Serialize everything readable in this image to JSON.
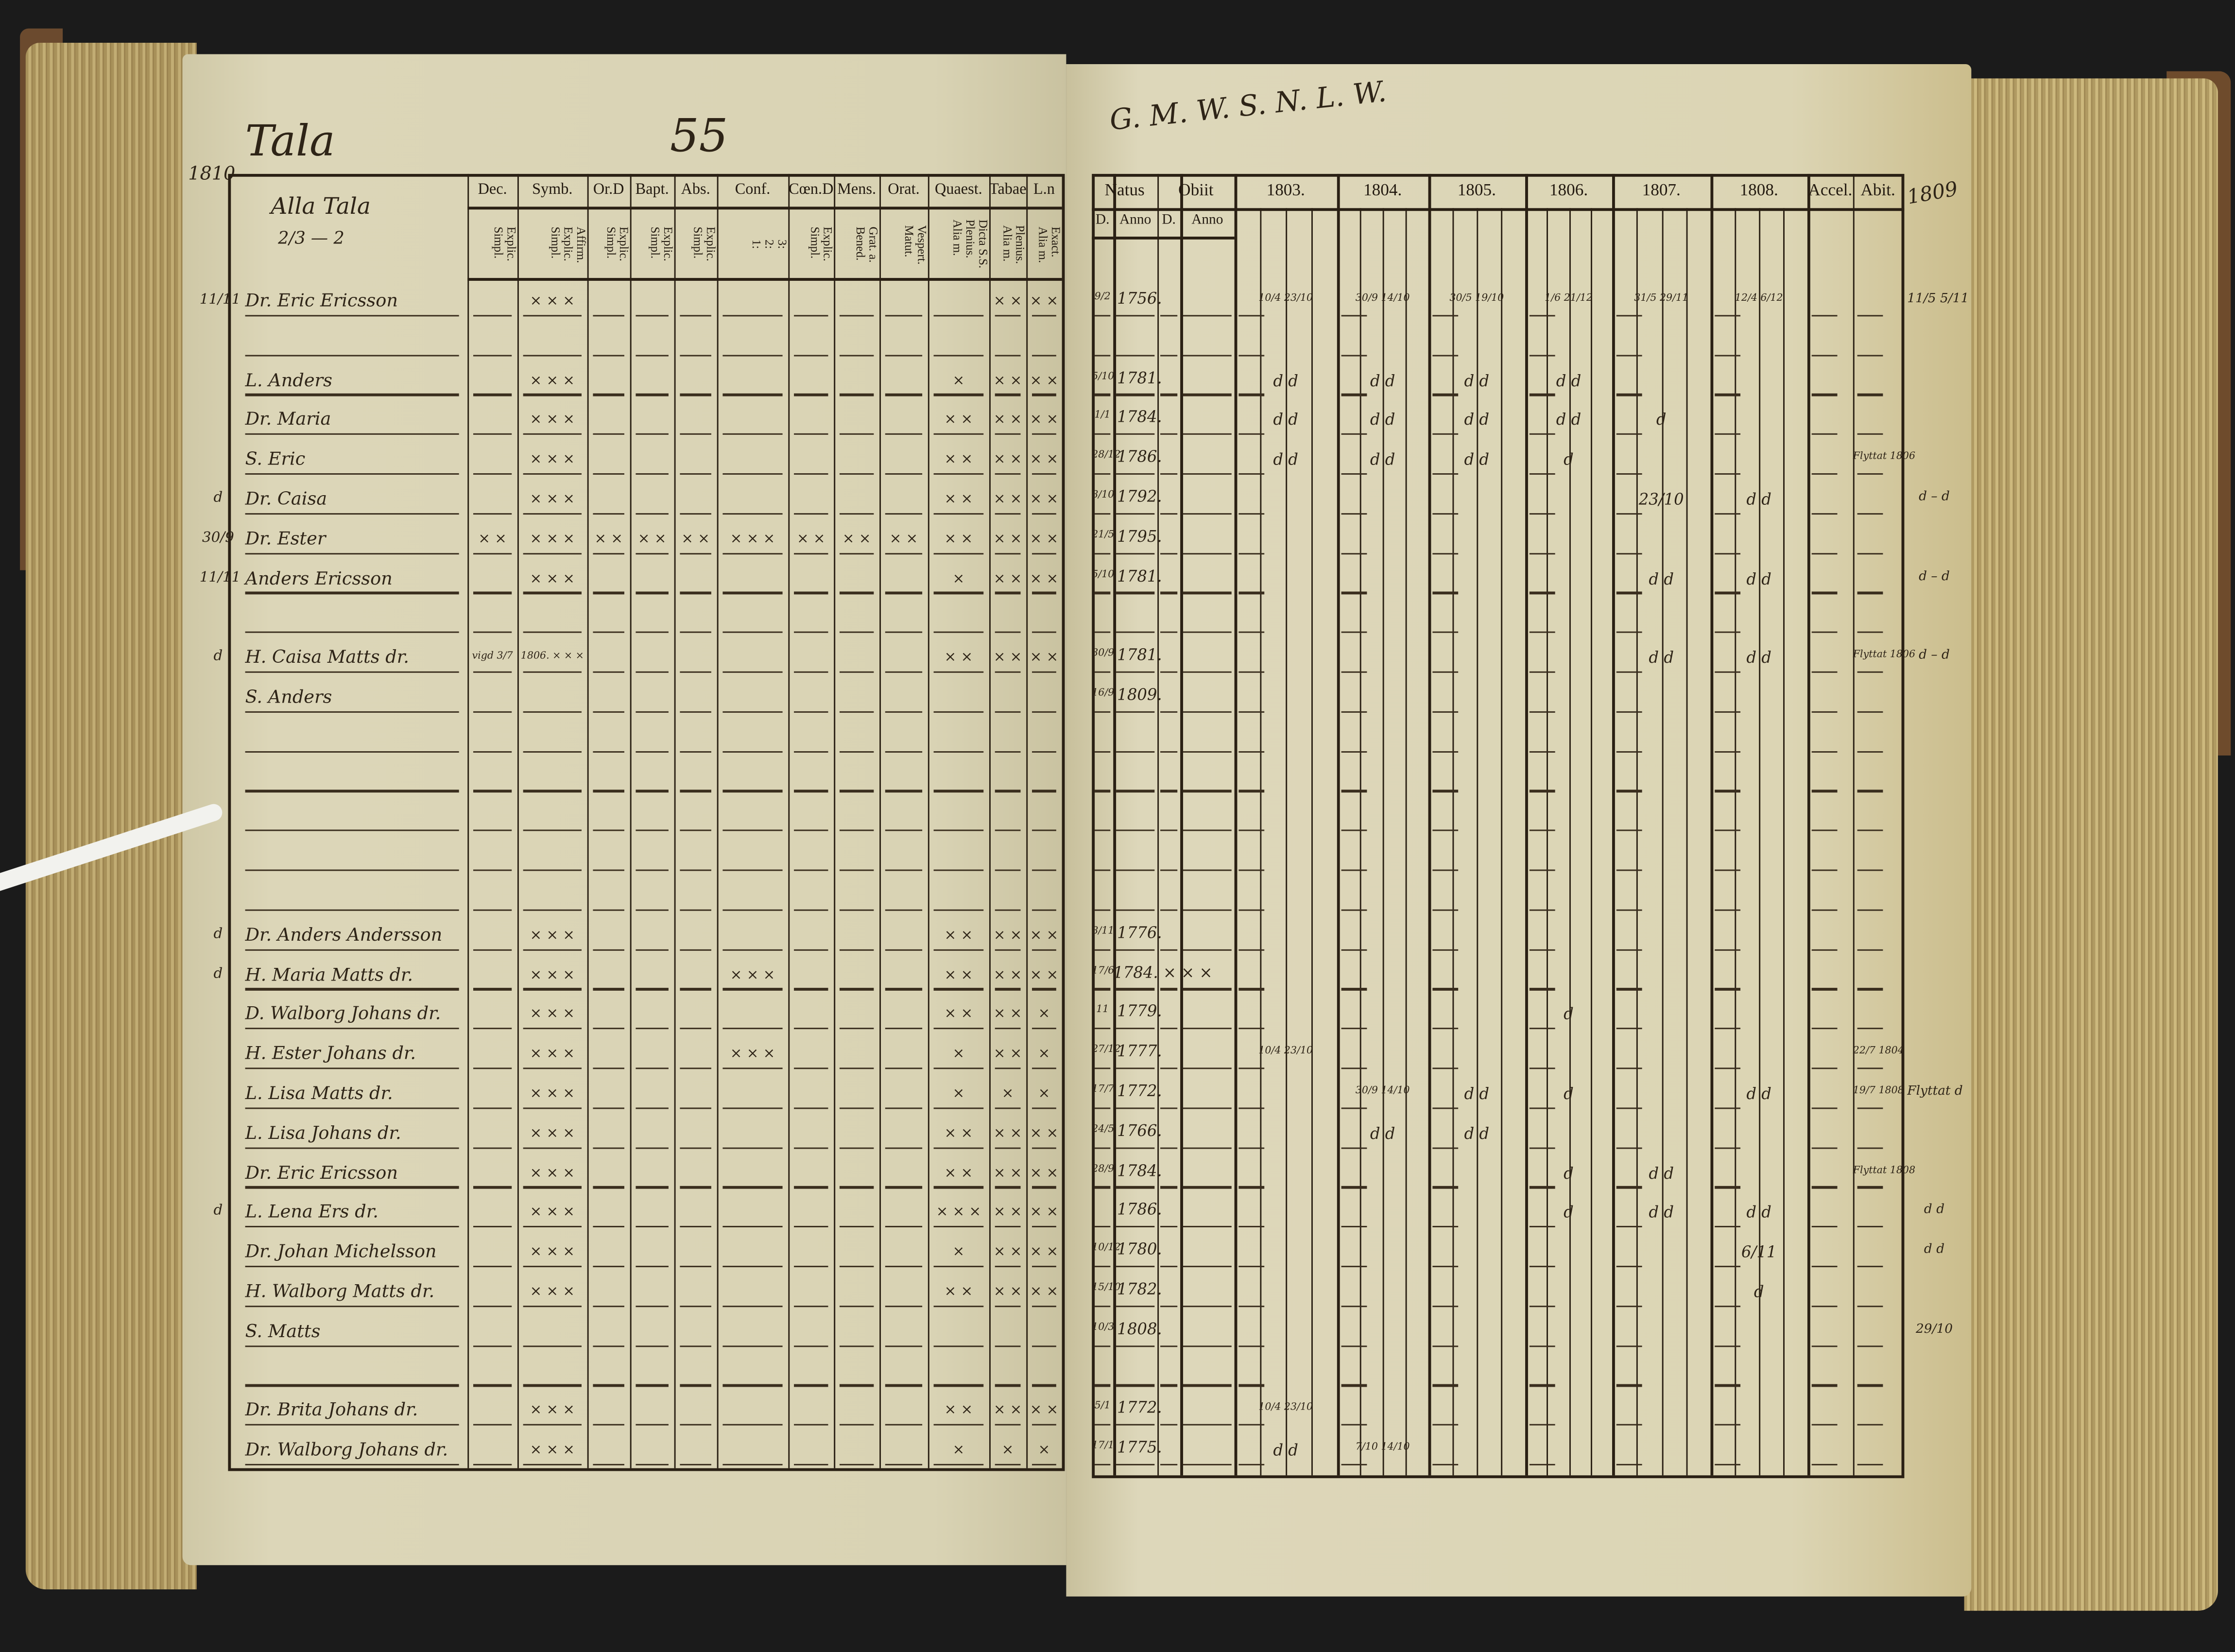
{
  "left_page": {
    "title": "Tala",
    "page_number": "55",
    "year_margin": "1810",
    "name_header": "Alla Tala",
    "name_header_fraction": "2/3 — 2",
    "columns": [
      {
        "top": "Dec.",
        "sub": [
          "Explic.",
          "Simpl."
        ]
      },
      {
        "top": "Symb.",
        "sub": [
          "Affirm.",
          "Explic.",
          "Simpl."
        ]
      },
      {
        "top": "Or.D",
        "sub": [
          "Explic.",
          "Simpl."
        ]
      },
      {
        "top": "Bapt.",
        "sub": [
          "Explic.",
          "Simpl."
        ]
      },
      {
        "top": "Abs.",
        "sub": [
          "Explic.",
          "Simpl."
        ]
      },
      {
        "top": "Conf.",
        "sub": [
          "3:",
          "2:",
          "1:"
        ]
      },
      {
        "top": "Cœn.D",
        "sub": [
          "Explic.",
          "Simpl."
        ]
      },
      {
        "top": "Mens.",
        "sub": [
          "Grat. a.",
          "Bened."
        ]
      },
      {
        "top": "Orat.",
        "sub": [
          "Vespert.",
          "Matut."
        ]
      },
      {
        "top": "Quaest.",
        "sub": [
          "Dicta S.S.",
          "Plenius.",
          "Alia m."
        ]
      },
      {
        "top": "Tabae",
        "sub": [
          "Plenius.",
          "Alia m."
        ]
      },
      {
        "top": "L.n",
        "sub": [
          "Exact.",
          "Alia m."
        ]
      }
    ],
    "rows": [
      {
        "row": 0,
        "name": "Dr. Eric Ericsson",
        "margin": "11/11",
        "marks": {
          "1": "× × ×",
          "10": "× ×",
          "11": "× ×"
        }
      },
      {
        "row": 2,
        "name": "L. Anders",
        "marks": {
          "1": "× × ×",
          "9": "×",
          "10": "× ×",
          "11": "× ×"
        }
      },
      {
        "row": 3,
        "name": "Dr. Maria",
        "marks": {
          "1": "× × ×",
          "9": "× ×",
          "10": "× ×",
          "11": "× ×"
        }
      },
      {
        "row": 4,
        "name": "S. Eric",
        "marks": {
          "1": "× × ×",
          "9": "× ×",
          "10": "× ×",
          "11": "× ×"
        }
      },
      {
        "row": 5,
        "name": "Dr. Caisa",
        "margin": "d",
        "marks": {
          "1": "× × ×",
          "9": "× ×",
          "10": "× ×",
          "11": "× ×"
        }
      },
      {
        "row": 6,
        "name": "Dr. Ester",
        "margin": "30/9",
        "marks": {
          "0": "× ×",
          "1": "× × ×",
          "2": "× ×",
          "3": "× ×",
          "4": "× ×",
          "5": "× × ×",
          "6": "× ×",
          "7": "× ×",
          "8": "× ×",
          "9": "× ×",
          "10": "× ×",
          "11": "× ×"
        }
      },
      {
        "row": 7,
        "name": "Anders Ericsson",
        "margin": "11/11",
        "marks": {
          "1": "× × ×",
          "9": "×",
          "10": "× ×",
          "11": "× ×"
        }
      },
      {
        "row": 9,
        "name": "H. Caisa Matts dr.",
        "margin": "d",
        "marks": {
          "0": "vigd 3/7",
          "1": "1806. × × ×",
          "9": "× ×",
          "10": "× ×",
          "11": "× ×"
        }
      },
      {
        "row": 10,
        "name": "S. Anders",
        "marks": {}
      },
      {
        "row": 16,
        "name": "Dr. Anders Andersson",
        "margin": "d",
        "marks": {
          "1": "× × ×",
          "9": "× ×",
          "10": "× ×",
          "11": "× ×"
        }
      },
      {
        "row": 17,
        "name": "H. Maria Matts dr.",
        "margin": "d",
        "marks": {
          "1": "× × ×",
          "5": "× × ×",
          "9": "× ×",
          "10": "× ×",
          "11": "× ×"
        }
      },
      {
        "row": 18,
        "name": "D. Walborg Johans dr.",
        "marks": {
          "1": "× × ×",
          "9": "× ×",
          "10": "× ×",
          "11": "×"
        }
      },
      {
        "row": 19,
        "name": "H. Ester Johans dr.",
        "marks": {
          "1": "× × ×",
          "5": "× × ×",
          "9": "×",
          "10": "× ×",
          "11": "×"
        }
      },
      {
        "row": 20,
        "name": "L. Lisa Matts dr.",
        "marks": {
          "1": "× × ×",
          "9": "×",
          "10": "×",
          "11": "×"
        }
      },
      {
        "row": 21,
        "name": "L. Lisa Johans dr.",
        "marks": {
          "1": "× × ×",
          "9": "× ×",
          "10": "× ×",
          "11": "× ×"
        }
      },
      {
        "row": 22,
        "name": "Dr. Eric Ericsson",
        "marks": {
          "1": "× × ×",
          "9": "× ×",
          "10": "× ×",
          "11": "× ×"
        }
      },
      {
        "row": 23,
        "name": "L. Lena Ers dr.",
        "margin": "d",
        "marks": {
          "1": "× × ×",
          "9": "× × ×",
          "10": "× ×",
          "11": "× ×"
        }
      },
      {
        "row": 24,
        "name": "Dr. Johan Michelsson",
        "marks": {
          "1": "× × ×",
          "9": "×",
          "10": "× ×",
          "11": "× ×"
        }
      },
      {
        "row": 25,
        "name": "H. Walborg Matts dr.",
        "marks": {
          "1": "× × ×",
          "9": "× ×",
          "10": "× ×",
          "11": "× ×"
        }
      },
      {
        "row": 26,
        "name": "S. Matts",
        "marks": {}
      },
      {
        "row": 28,
        "name": "Dr. Brita Johans dr.",
        "marks": {
          "1": "× × ×",
          "9": "× ×",
          "10": "× ×",
          "11": "× ×"
        }
      },
      {
        "row": 29,
        "name": "Dr. Walborg Johans dr.",
        "marks": {
          "1": "× × ×",
          "9": "×",
          "10": "×",
          "11": "×"
        }
      }
    ]
  },
  "right_page": {
    "top_note": "G. M. W. S. N. L. W.",
    "year_margin": "1809",
    "columns": [
      {
        "top": "Natus",
        "sub": [
          "D.",
          "Anno"
        ]
      },
      {
        "top": "Obiit",
        "sub": [
          "D.",
          "Anno"
        ]
      },
      {
        "top": "1803."
      },
      {
        "top": "1804."
      },
      {
        "top": "1805."
      },
      {
        "top": "1806."
      },
      {
        "top": "1807."
      },
      {
        "top": "1808."
      },
      {
        "top": "Accel."
      },
      {
        "top": "Abit."
      }
    ],
    "rows": [
      {
        "row": 0,
        "d": "9/2",
        "anno": "1756.",
        "marks": {
          "1803": "10/4 23/10",
          "1804": "30/9 14/10",
          "1805": "30/5 19/10",
          "1806": "1/6 21/12",
          "1807": "31/5 29/11",
          "1808": "12/4 6/12"
        },
        "margin": "11/5 5/11"
      },
      {
        "row": 2,
        "d": "5/10",
        "anno": "1781.",
        "marks": {
          "1803": "d d",
          "1804": "d d",
          "1805": "d d",
          "1806": "d d"
        }
      },
      {
        "row": 3,
        "d": "1/1",
        "anno": "1784.",
        "marks": {
          "1803": "d d",
          "1804": "d d",
          "1805": "d d",
          "1806": "d d",
          "1807": "d"
        }
      },
      {
        "row": 4,
        "d": "28/12",
        "anno": "1786.",
        "marks": {
          "1803": "d d",
          "1804": "d d",
          "1805": "d d",
          "1806": "d",
          "Abit": "Flyttat 1806"
        }
      },
      {
        "row": 5,
        "d": "8/10",
        "anno": "1792.",
        "marks": {
          "1807": "23/10",
          "1808": "d d"
        },
        "margin": "d – d"
      },
      {
        "row": 6,
        "d": "21/5",
        "anno": "1795.",
        "marks": {}
      },
      {
        "row": 7,
        "d": "5/10",
        "anno": "1781.",
        "marks": {
          "1807": "d d",
          "1808": "d d"
        },
        "margin": "d – d"
      },
      {
        "row": 9,
        "d": "30/9",
        "anno": "1781.",
        "marks": {
          "1807": "d d",
          "1808": "d d",
          "Abit": "Flyttat 1806"
        },
        "margin": "d – d"
      },
      {
        "row": 10,
        "d": "16/9",
        "anno": "1809.",
        "marks": {}
      },
      {
        "row": 16,
        "d": "8/11",
        "anno": "1776.",
        "marks": {}
      },
      {
        "row": 17,
        "d": "17/6",
        "anno": "1784. × × ×",
        "marks": {}
      },
      {
        "row": 18,
        "d": "11",
        "anno": "1779.",
        "marks": {
          "1806": "d"
        }
      },
      {
        "row": 19,
        "d": "27/12",
        "anno": "1777.",
        "marks": {
          "1803": "10/4 23/10",
          "Abit": "22/7 1804"
        }
      },
      {
        "row": 20,
        "d": "17/7",
        "anno": "1772.",
        "marks": {
          "1804": "30/9 14/10",
          "1805": "d d",
          "1806": "d",
          "1808": "d d",
          "Abit": "19/7 1808"
        },
        "margin": "Flyttat d"
      },
      {
        "row": 21,
        "d": "24/5",
        "anno": "1766.",
        "marks": {
          "1804": "d d",
          "1805": "d d"
        }
      },
      {
        "row": 22,
        "d": "28/9",
        "anno": "1784.",
        "marks": {
          "1806": "d",
          "1807": "d d",
          "Abit": "Flyttat 1808"
        }
      },
      {
        "row": 23,
        "d": "",
        "anno": "1786.",
        "marks": {
          "1806": "d",
          "1807": "d d",
          "1808": "d d"
        },
        "margin": "d d"
      },
      {
        "row": 24,
        "d": "10/12",
        "anno": "1780.",
        "marks": {
          "1808": "6/11"
        },
        "margin": "d d"
      },
      {
        "row": 25,
        "d": "15/10",
        "anno": "1782.",
        "marks": {
          "1808": "d"
        }
      },
      {
        "row": 26,
        "d": "10/3",
        "anno": "1808.",
        "marks": {},
        "margin": "29/10"
      },
      {
        "row": 28,
        "d": "5/1",
        "anno": "1772.",
        "marks": {
          "1803": "10/4 23/10"
        }
      },
      {
        "row": 29,
        "d": "17/1",
        "anno": "1775.",
        "marks": {
          "1803": "d d",
          "1804": "7/10 14/10"
        }
      }
    ]
  },
  "colors": {
    "paper": "#dcd5b6",
    "ink": "#2a2014",
    "background": "#1b1b1b",
    "page_edges": "#b09a62"
  }
}
